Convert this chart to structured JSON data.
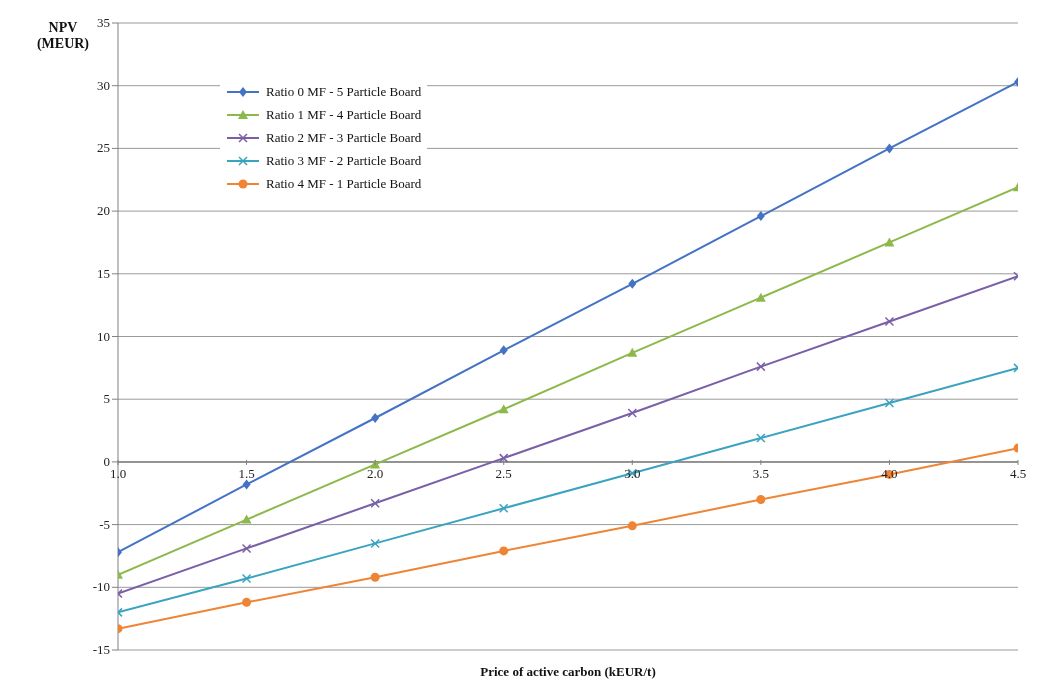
{
  "chart_data": {
    "type": "line",
    "xlabel": "Price of active carbon (kEUR/t)",
    "ylabel": "NPV (MEUR)",
    "x": [
      1.0,
      1.5,
      2.0,
      2.5,
      3.0,
      3.5,
      4.0,
      4.5
    ],
    "xlim": [
      1.0,
      4.5
    ],
    "xticks": [
      {
        "value": 1.0,
        "label": "1.0"
      },
      {
        "value": 1.5,
        "label": "1.5"
      },
      {
        "value": 2.0,
        "label": "2.0"
      },
      {
        "value": 2.5,
        "label": "2.5"
      },
      {
        "value": 3.0,
        "label": "3.0"
      },
      {
        "value": 3.5,
        "label": "3.5"
      },
      {
        "value": 4.0,
        "label": "4.0"
      },
      {
        "value": 4.5,
        "label": "4.5"
      }
    ],
    "ylim": [
      -15,
      35
    ],
    "yticks": [
      -15,
      -10,
      -5,
      0,
      5,
      10,
      15,
      20,
      25,
      30,
      35
    ],
    "grid": "y",
    "legend": "top left",
    "series": [
      {
        "name": "Ratio 0 MF - 5 Particle Board",
        "color": "#4472c4",
        "marker": "diamond",
        "values": [
          -7.2,
          -1.8,
          3.5,
          8.9,
          14.2,
          19.6,
          25.0,
          30.3
        ]
      },
      {
        "name": "Ratio 1 MF - 4 Particle Board",
        "color": "#8db84a",
        "marker": "triangle",
        "values": [
          -9.0,
          -4.6,
          -0.2,
          4.2,
          8.7,
          13.1,
          17.5,
          21.9
        ]
      },
      {
        "name": "Ratio 2 MF - 3 Particle Board",
        "color": "#7a5fa8",
        "marker": "cross",
        "values": [
          -10.5,
          -6.9,
          -3.3,
          0.3,
          3.9,
          7.6,
          11.2,
          14.8
        ]
      },
      {
        "name": "Ratio 3 MF - 2 Particle Board",
        "color": "#3aa3bf",
        "marker": "cross",
        "values": [
          -12.0,
          -9.3,
          -6.5,
          -3.7,
          -0.9,
          1.9,
          4.7,
          7.5
        ]
      },
      {
        "name": "Ratio 4 MF - 1 Particle Board",
        "color": "#ee8434",
        "marker": "circle",
        "values": [
          -13.3,
          -11.2,
          -9.2,
          -7.1,
          -5.1,
          -3.0,
          -1.0,
          1.1
        ]
      }
    ]
  }
}
